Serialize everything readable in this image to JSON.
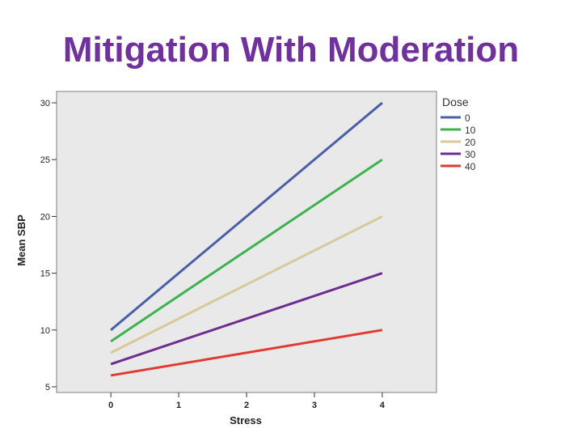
{
  "slide": {
    "title": "Mitigation With Moderation"
  },
  "colors": {
    "title": "#7030a0",
    "plot_background": "#e9e9e9",
    "plot_border": "#7f7f7f"
  },
  "chart_data": {
    "type": "line",
    "title": "",
    "xlabel": "Stress",
    "ylabel": "Mean SBP",
    "x": [
      0,
      4
    ],
    "xticks": [
      0,
      1,
      2,
      3,
      4
    ],
    "yticks": [
      5,
      10,
      15,
      20,
      25,
      30
    ],
    "xlim": [
      -0.8,
      4.8
    ],
    "ylim": [
      4.5,
      31
    ],
    "grid": false,
    "legend": {
      "title": "Dose",
      "placement": "right"
    },
    "series": [
      {
        "name": "0",
        "color": "#4a5faa",
        "values": [
          10,
          30
        ]
      },
      {
        "name": "10",
        "color": "#3cb44b",
        "values": [
          9,
          25
        ]
      },
      {
        "name": "20",
        "color": "#d8c99a",
        "values": [
          8,
          20
        ]
      },
      {
        "name": "30",
        "color": "#6f2c91",
        "values": [
          7,
          15
        ]
      },
      {
        "name": "40",
        "color": "#e23a2e",
        "values": [
          6,
          10
        ]
      }
    ]
  }
}
